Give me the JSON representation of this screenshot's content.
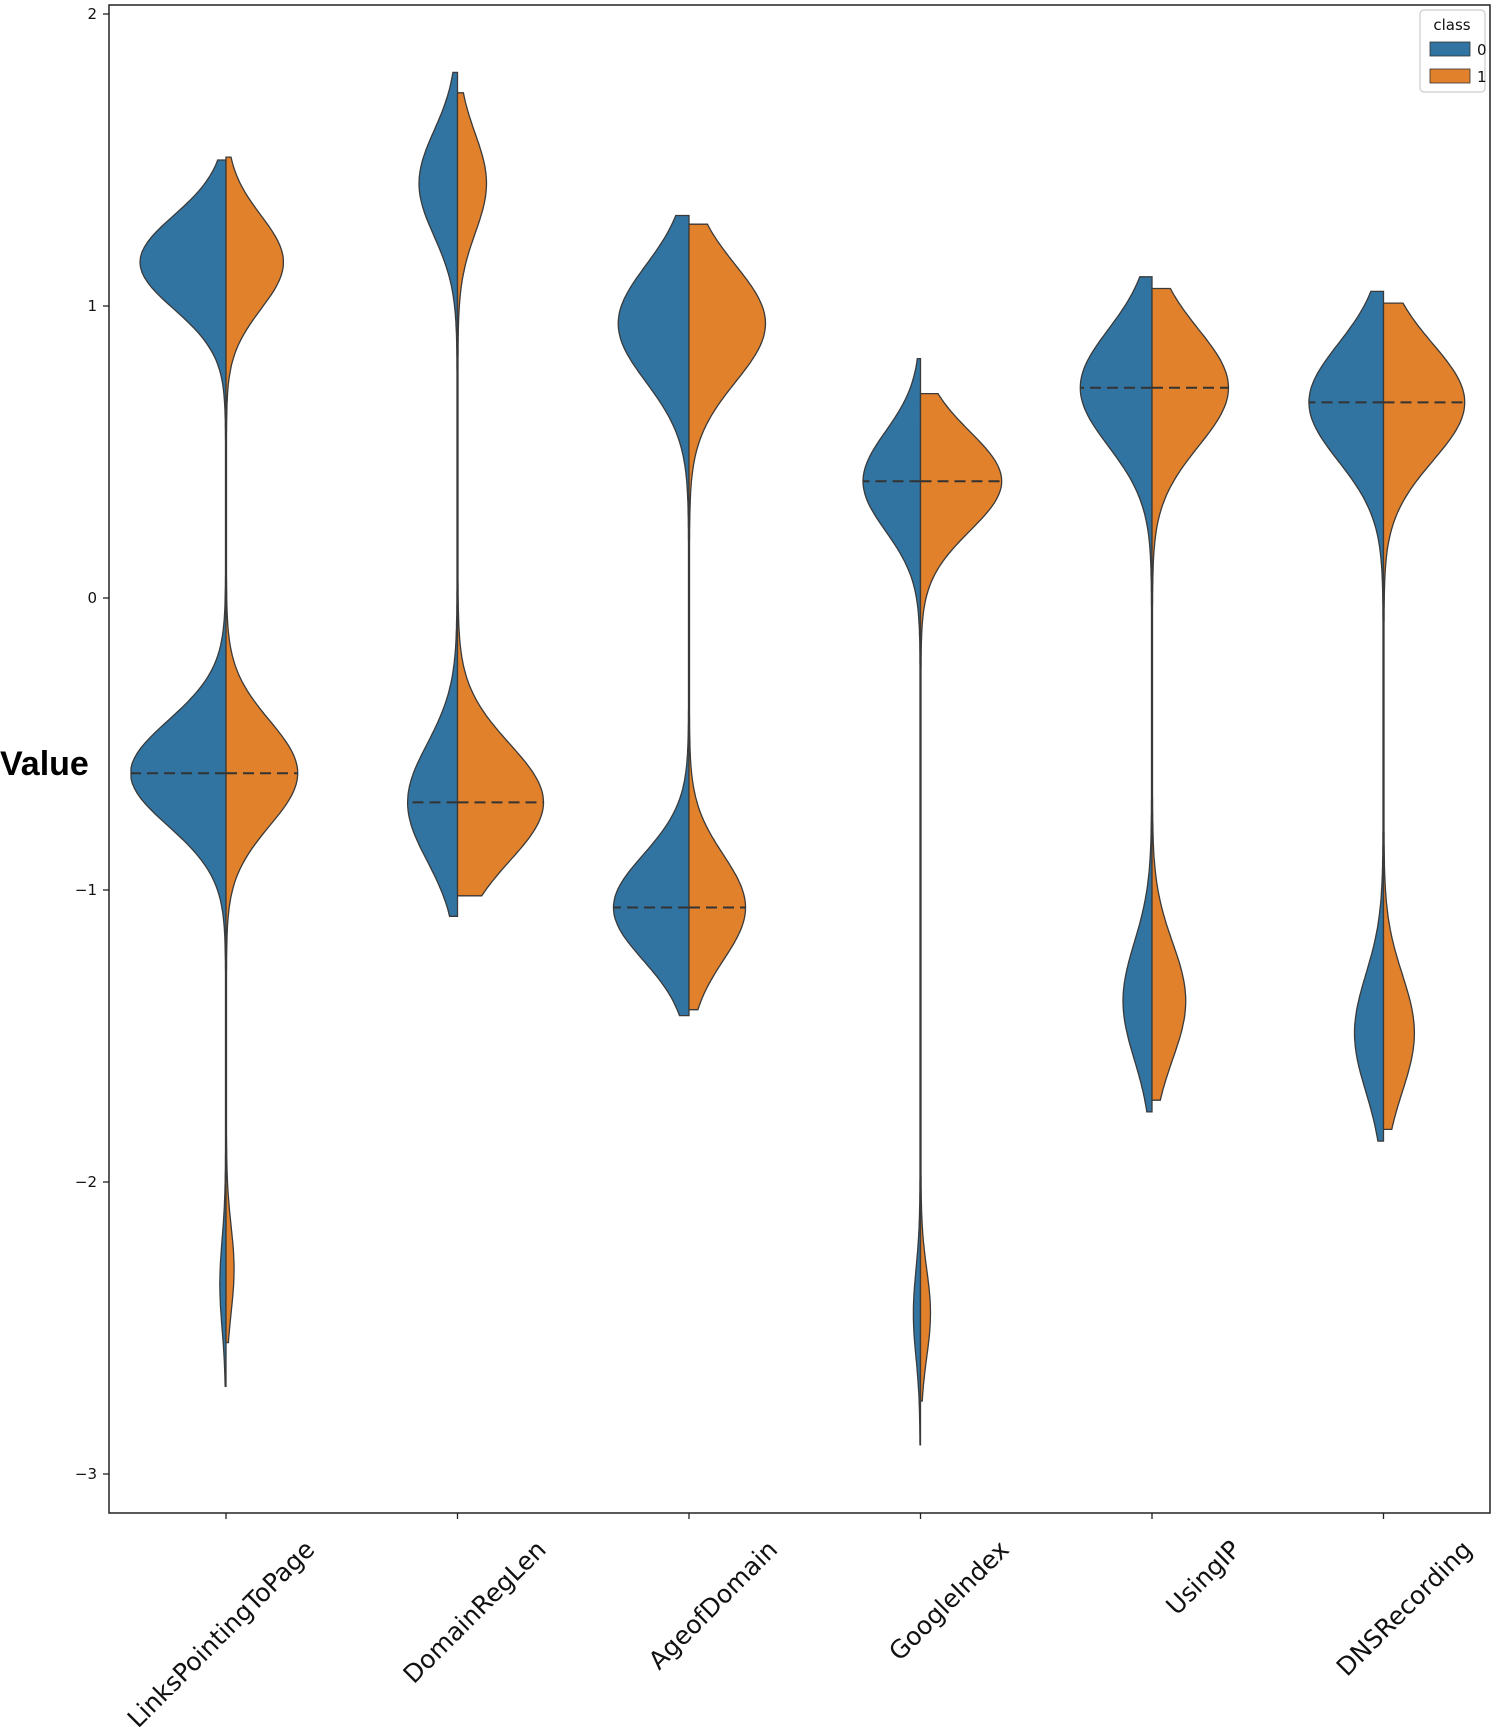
{
  "chart_data": {
    "type": "violin",
    "split": true,
    "ylabel": "Value",
    "xlabel": "",
    "ylim": [
      -3.15,
      2.05
    ],
    "yticks": [
      2,
      1,
      0,
      -1,
      -2,
      -3
    ],
    "ytick_labels": [
      "2",
      "1",
      "0",
      "−1",
      "−2",
      "−3"
    ],
    "grid": false,
    "legend": {
      "title": "class",
      "placement": "top-right",
      "entries": [
        {
          "label": "0",
          "color": "#3274a1"
        },
        {
          "label": "1",
          "color": "#e1812c"
        }
      ]
    },
    "inner": "quartile",
    "categories": [
      "LinksPointingToPage",
      "DomainRegLen",
      "AgeofDomain",
      "GoogleIndex",
      "UsingIP",
      "DNSRecording"
    ],
    "series": [
      {
        "name": "0",
        "color": "#3274a1",
        "distributions": [
          {
            "min": -2.7,
            "max": 1.5,
            "median": -0.6,
            "modes": [
              {
                "value": 1.15,
                "width": 0.9,
                "spread": 0.16
              },
              {
                "value": -0.6,
                "width": 1.0,
                "spread": 0.18
              },
              {
                "value": -2.35,
                "width": 0.06,
                "spread": 0.15
              }
            ]
          },
          {
            "min": -1.09,
            "max": 1.8,
            "median": -0.7,
            "modes": [
              {
                "value": 1.42,
                "width": 0.4,
                "spread": 0.18
              },
              {
                "value": -0.7,
                "width": 0.52,
                "spread": 0.2
              }
            ]
          },
          {
            "min": -1.43,
            "max": 1.31,
            "median": -1.06,
            "modes": [
              {
                "value": 0.94,
                "width": 0.74,
                "spread": 0.2
              },
              {
                "value": -1.06,
                "width": 0.79,
                "spread": 0.18
              }
            ]
          },
          {
            "min": -2.9,
            "max": 0.82,
            "median": 0.4,
            "modes": [
              {
                "value": 0.4,
                "width": 0.6,
                "spread": 0.17
              },
              {
                "value": -2.45,
                "width": 0.07,
                "spread": 0.15
              }
            ]
          },
          {
            "min": -1.76,
            "max": 1.1,
            "median": 0.72,
            "modes": [
              {
                "value": 0.72,
                "width": 0.75,
                "spread": 0.2
              },
              {
                "value": -1.38,
                "width": 0.3,
                "spread": 0.2
              }
            ]
          },
          {
            "min": -1.86,
            "max": 1.05,
            "median": 0.67,
            "modes": [
              {
                "value": 0.67,
                "width": 0.78,
                "spread": 0.2
              },
              {
                "value": -1.49,
                "width": 0.3,
                "spread": 0.2
              }
            ]
          }
        ]
      },
      {
        "name": "1",
        "color": "#e1812c",
        "distributions": [
          {
            "min": -2.55,
            "max": 1.51,
            "median": -0.6,
            "modes": [
              {
                "value": 1.15,
                "width": 0.6,
                "spread": 0.16
              },
              {
                "value": -0.6,
                "width": 0.75,
                "spread": 0.18
              },
              {
                "value": -2.3,
                "width": 0.08,
                "spread": 0.15
              }
            ]
          },
          {
            "min": -1.02,
            "max": 1.73,
            "median": -0.7,
            "modes": [
              {
                "value": 1.42,
                "width": 0.3,
                "spread": 0.17
              },
              {
                "value": -0.7,
                "width": 0.9,
                "spread": 0.2
              }
            ]
          },
          {
            "min": -1.41,
            "max": 1.28,
            "median": -1.06,
            "modes": [
              {
                "value": 0.94,
                "width": 0.8,
                "spread": 0.2
              },
              {
                "value": -1.06,
                "width": 0.59,
                "spread": 0.18
              }
            ]
          },
          {
            "min": -2.75,
            "max": 0.7,
            "median": 0.4,
            "modes": [
              {
                "value": 0.4,
                "width": 0.85,
                "spread": 0.17
              },
              {
                "value": -2.45,
                "width": 0.1,
                "spread": 0.15
              }
            ]
          },
          {
            "min": -1.72,
            "max": 1.06,
            "median": 0.72,
            "modes": [
              {
                "value": 0.72,
                "width": 0.8,
                "spread": 0.2
              },
              {
                "value": -1.38,
                "width": 0.35,
                "spread": 0.2
              }
            ]
          },
          {
            "min": -1.82,
            "max": 1.01,
            "median": 0.67,
            "modes": [
              {
                "value": 0.67,
                "width": 0.85,
                "spread": 0.2
              },
              {
                "value": -1.49,
                "width": 0.32,
                "spread": 0.2
              }
            ]
          }
        ]
      }
    ]
  }
}
